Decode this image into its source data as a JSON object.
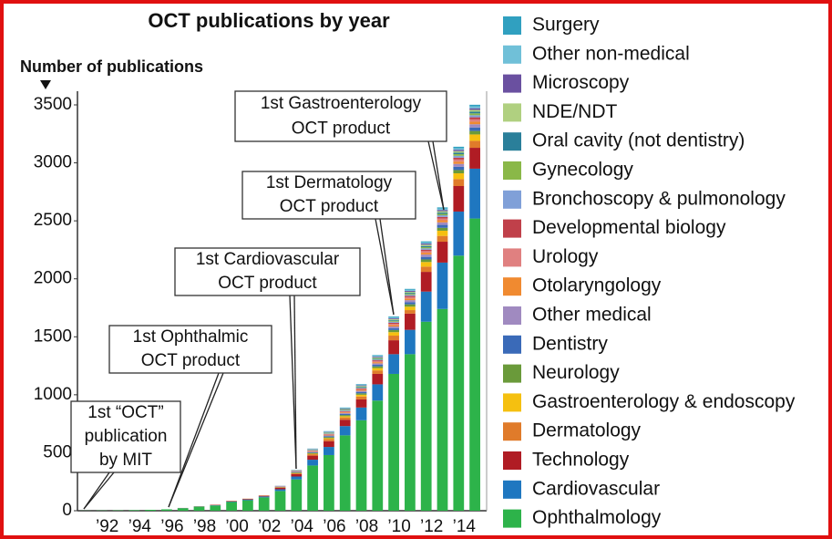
{
  "chart_data": {
    "type": "stacked_bar",
    "title": "OCT publications by year",
    "ylabel": "Number of publications",
    "categories": [
      null,
      "’92",
      null,
      "’94",
      null,
      "’96",
      null,
      "’98",
      null,
      "’00",
      null,
      "’02",
      null,
      "’04",
      null,
      "’06",
      null,
      "’08",
      null,
      "’10",
      null,
      "’12",
      null,
      "’14",
      null
    ],
    "ylim": [
      0,
      3500
    ],
    "yticks": [
      0,
      500,
      1000,
      1500,
      2000,
      2500,
      3000,
      3500
    ],
    "series": [
      {
        "name": "Ophthalmology",
        "color": "#2db34a",
        "values": [
          1,
          2,
          3,
          5,
          8,
          12,
          22,
          35,
          45,
          75,
          90,
          115,
          170,
          270,
          390,
          480,
          650,
          780,
          950,
          1180,
          1350,
          1630,
          1740,
          2200,
          2520
        ]
      },
      {
        "name": "Cardiovascular",
        "color": "#1f77c0",
        "values": [
          0,
          0,
          0,
          0,
          0,
          0,
          1,
          2,
          3,
          5,
          7,
          8,
          15,
          25,
          50,
          70,
          80,
          110,
          140,
          170,
          210,
          260,
          400,
          380,
          430
        ]
      },
      {
        "name": "Technology",
        "color": "#b01c24",
        "values": [
          0,
          0,
          0,
          0,
          0,
          0,
          1,
          1,
          3,
          4,
          5,
          6,
          12,
          20,
          35,
          50,
          55,
          70,
          90,
          120,
          140,
          170,
          180,
          220,
          180
        ]
      },
      {
        "name": "Dermatology",
        "color": "#e07b2a",
        "values": [
          0,
          0,
          0,
          0,
          0,
          0,
          0,
          1,
          1,
          2,
          2,
          3,
          5,
          8,
          12,
          18,
          20,
          25,
          30,
          40,
          30,
          45,
          50,
          60,
          60
        ]
      },
      {
        "name": "Gastroenterology & endoscopy",
        "color": "#f5c010",
        "values": [
          0,
          0,
          0,
          0,
          0,
          0,
          0,
          0,
          0,
          0,
          0,
          0,
          0,
          2,
          5,
          8,
          10,
          15,
          20,
          30,
          30,
          40,
          45,
          50,
          55
        ]
      },
      {
        "name": "Neurology",
        "color": "#6a9a3a",
        "values": [
          0,
          0,
          0,
          0,
          0,
          0,
          0,
          0,
          0,
          0,
          0,
          0,
          3,
          5,
          6,
          8,
          10,
          12,
          15,
          18,
          20,
          22,
          25,
          28,
          30
        ]
      },
      {
        "name": "Dentistry",
        "color": "#3a6ab8",
        "values": [
          0,
          0,
          0,
          0,
          0,
          0,
          0,
          0,
          0,
          0,
          0,
          0,
          2,
          4,
          6,
          8,
          10,
          12,
          14,
          16,
          18,
          22,
          25,
          28,
          30
        ]
      },
      {
        "name": "Other medical",
        "color": "#a08ac0",
        "values": [
          0,
          0,
          0,
          0,
          0,
          0,
          0,
          0,
          0,
          0,
          0,
          0,
          2,
          3,
          5,
          7,
          8,
          10,
          12,
          15,
          18,
          20,
          22,
          25,
          28
        ]
      },
      {
        "name": "Otolaryngology",
        "color": "#f08a30",
        "values": [
          0,
          0,
          0,
          0,
          0,
          0,
          0,
          0,
          0,
          0,
          0,
          0,
          1,
          2,
          4,
          5,
          6,
          8,
          10,
          12,
          14,
          16,
          18,
          20,
          22
        ]
      },
      {
        "name": "Urology",
        "color": "#e08080",
        "values": [
          0,
          0,
          0,
          0,
          0,
          0,
          0,
          0,
          0,
          0,
          0,
          0,
          1,
          2,
          3,
          4,
          5,
          6,
          8,
          10,
          12,
          14,
          15,
          18,
          20
        ]
      },
      {
        "name": "Developmental biology",
        "color": "#c0404a",
        "values": [
          0,
          0,
          0,
          0,
          0,
          0,
          0,
          0,
          0,
          0,
          0,
          0,
          1,
          2,
          3,
          4,
          5,
          6,
          8,
          10,
          10,
          12,
          14,
          16,
          18
        ]
      },
      {
        "name": "Bronchoscopy & pulmonology",
        "color": "#80a0d8",
        "values": [
          0,
          0,
          0,
          0,
          0,
          0,
          0,
          0,
          0,
          0,
          0,
          0,
          1,
          2,
          3,
          4,
          5,
          6,
          7,
          9,
          10,
          12,
          14,
          16,
          18
        ]
      },
      {
        "name": "Gynecology",
        "color": "#8ab848",
        "values": [
          0,
          0,
          0,
          0,
          0,
          0,
          0,
          0,
          0,
          0,
          0,
          0,
          0,
          1,
          2,
          3,
          4,
          5,
          6,
          8,
          9,
          10,
          12,
          14,
          16
        ]
      },
      {
        "name": "Oral cavity (not dentistry)",
        "color": "#2a7f9a",
        "values": [
          0,
          0,
          0,
          0,
          0,
          0,
          0,
          0,
          0,
          0,
          0,
          0,
          0,
          1,
          2,
          3,
          4,
          5,
          6,
          7,
          8,
          10,
          11,
          12,
          14
        ]
      },
      {
        "name": "NDE/NDT",
        "color": "#b0d080",
        "values": [
          0,
          0,
          0,
          0,
          0,
          0,
          0,
          0,
          0,
          0,
          0,
          0,
          1,
          2,
          3,
          4,
          5,
          6,
          7,
          8,
          9,
          11,
          12,
          14,
          16
        ]
      },
      {
        "name": "Microscopy",
        "color": "#6a50a0",
        "values": [
          0,
          0,
          0,
          0,
          0,
          0,
          0,
          0,
          0,
          0,
          0,
          0,
          1,
          1,
          2,
          3,
          4,
          5,
          6,
          7,
          8,
          10,
          11,
          12,
          14
        ]
      },
      {
        "name": "Other non-medical",
        "color": "#70c0d8",
        "values": [
          0,
          0,
          0,
          0,
          0,
          0,
          0,
          0,
          0,
          0,
          0,
          0,
          1,
          2,
          3,
          4,
          5,
          6,
          7,
          8,
          9,
          10,
          12,
          14,
          16
        ]
      },
      {
        "name": "Surgery",
        "color": "#30a0c0",
        "values": [
          0,
          0,
          0,
          0,
          0,
          0,
          0,
          0,
          0,
          0,
          0,
          0,
          0,
          1,
          2,
          3,
          4,
          5,
          6,
          7,
          8,
          9,
          10,
          12,
          14
        ]
      }
    ],
    "annotations": [
      {
        "lines": [
          "1st “OCT”",
          "publication",
          "by MIT"
        ]
      },
      {
        "lines": [
          "1st Ophthalmic",
          "OCT product"
        ]
      },
      {
        "lines": [
          "1st Cardiovascular",
          "OCT product"
        ]
      },
      {
        "lines": [
          "1st Dermatology",
          "OCT product"
        ]
      },
      {
        "lines": [
          "1st Gastroenterology",
          "OCT product"
        ]
      }
    ]
  }
}
